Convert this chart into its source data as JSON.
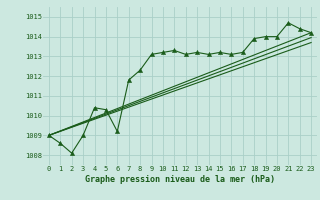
{
  "title": "Graphe pression niveau de la mer (hPa)",
  "bg_color": "#cce8e0",
  "grid_color": "#aacfc8",
  "line_color": "#1a5c1a",
  "ylim": [
    1007.5,
    1015.5
  ],
  "xlim": [
    -0.5,
    23.5
  ],
  "yticks": [
    1008,
    1009,
    1010,
    1011,
    1012,
    1013,
    1014,
    1015
  ],
  "xticks": [
    0,
    1,
    2,
    3,
    4,
    5,
    6,
    7,
    8,
    9,
    10,
    11,
    12,
    13,
    14,
    15,
    16,
    17,
    18,
    19,
    20,
    21,
    22,
    23
  ],
  "pressure_data": [
    1009.0,
    1008.6,
    1008.1,
    1009.0,
    1010.4,
    1010.3,
    1009.2,
    1011.8,
    1012.3,
    1013.1,
    1013.2,
    1013.3,
    1013.1,
    1013.2,
    1013.1,
    1013.2,
    1013.1,
    1013.2,
    1013.9,
    1014.0,
    1014.0,
    1014.7,
    1014.4,
    1014.2
  ],
  "trend_x0": 0,
  "trend_y0": 1009.0,
  "trend_x1": 23,
  "trend_yends": [
    1014.2,
    1013.95,
    1013.7
  ],
  "label_fontsize": 5.0,
  "title_fontsize": 6.0
}
